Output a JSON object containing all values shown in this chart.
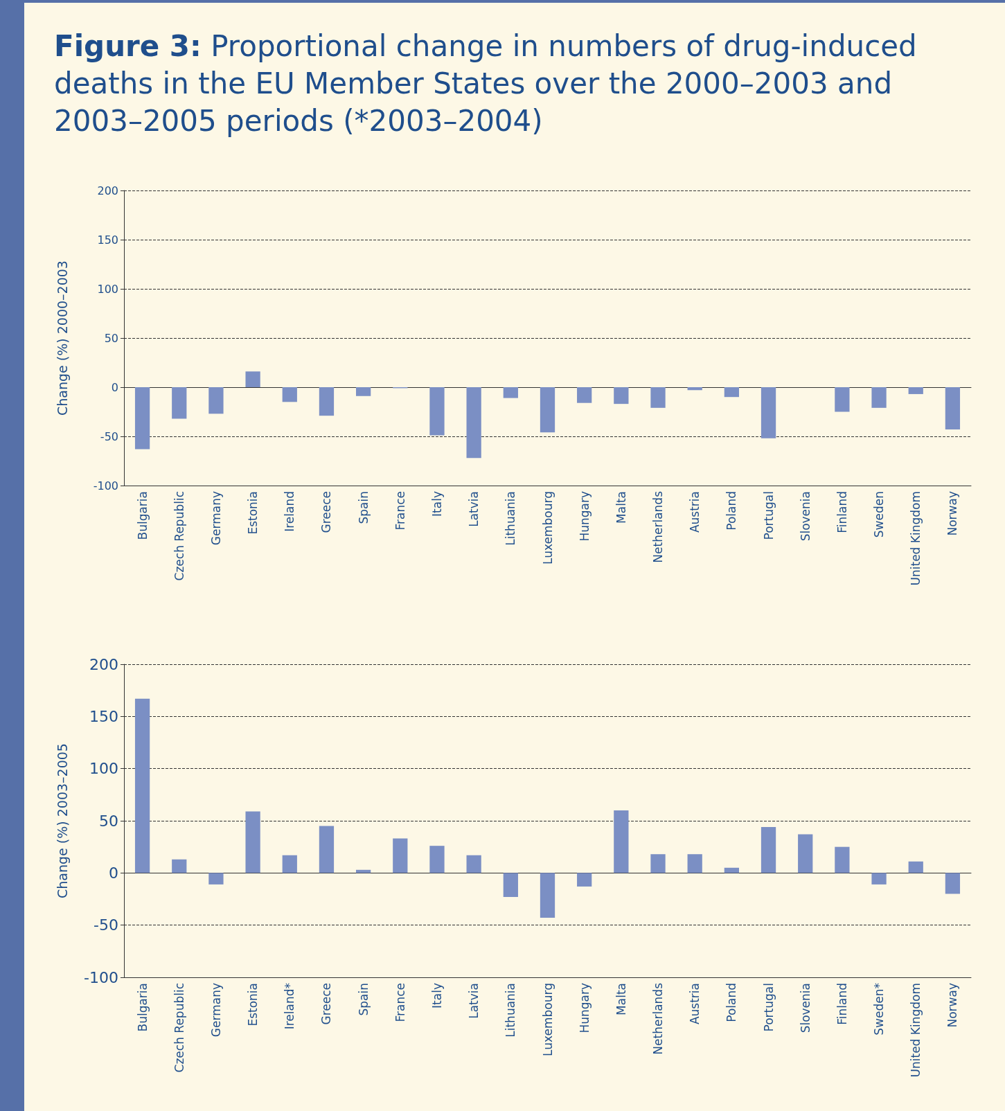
{
  "chart_data": [
    {
      "type": "bar",
      "title": "Figure 3: Proportional change in numbers of drug-induced deaths in the EU Member States over the 2000–2003 and 2003–2005 periods (*2003–2004)",
      "ylabel": "Change (%) 2000–2003",
      "categories": [
        "Bulgaria",
        "Czech Republic",
        "Germany",
        "Estonia",
        "Ireland",
        "Greece",
        "Spain",
        "France",
        "Italy",
        "Latvia",
        "Lithuania",
        "Luxembourg",
        "Hungary",
        "Malta",
        "Netherlands",
        "Austria",
        "Poland",
        "Portugal",
        "Slovenia",
        "Finland",
        "Sweden",
        "United Kingdom",
        "Norway"
      ],
      "values": [
        -63,
        -32,
        -27,
        16,
        -15,
        -29,
        -9,
        -1,
        -49,
        -72,
        -11,
        -46,
        -16,
        -17,
        -21,
        -3,
        -10,
        -52,
        null,
        -25,
        -21,
        -7,
        -43
      ],
      "color": "#7b8fc4",
      "ylim": [
        -100,
        200
      ],
      "yticks": [
        -100,
        -50,
        0,
        50,
        100,
        150,
        200
      ],
      "grid": "y"
    },
    {
      "type": "bar",
      "ylabel": "Change (%) 2003–2005",
      "categories": [
        "Bulgaria",
        "Czech Republic",
        "Germany",
        "Estonia",
        "Ireland*",
        "Greece",
        "Spain",
        "France",
        "Italy",
        "Latvia",
        "Lithuania",
        "Luxembourg",
        "Hungary",
        "Malta",
        "Netherlands",
        "Austria",
        "Poland",
        "Portugal",
        "Slovenia",
        "Finland",
        "Sweden*",
        "United Kingdom",
        "Norway"
      ],
      "values": [
        167,
        13,
        -11,
        59,
        17,
        45,
        3,
        33,
        26,
        17,
        -23,
        -43,
        -13,
        60,
        18,
        18,
        5,
        44,
        37,
        25,
        -11,
        11,
        -20
      ],
      "color": "#7b8fc4",
      "ylim": [
        -100,
        200
      ],
      "yticks": [
        -100,
        -50,
        0,
        50,
        100,
        150,
        200
      ],
      "grid": "y"
    }
  ]
}
